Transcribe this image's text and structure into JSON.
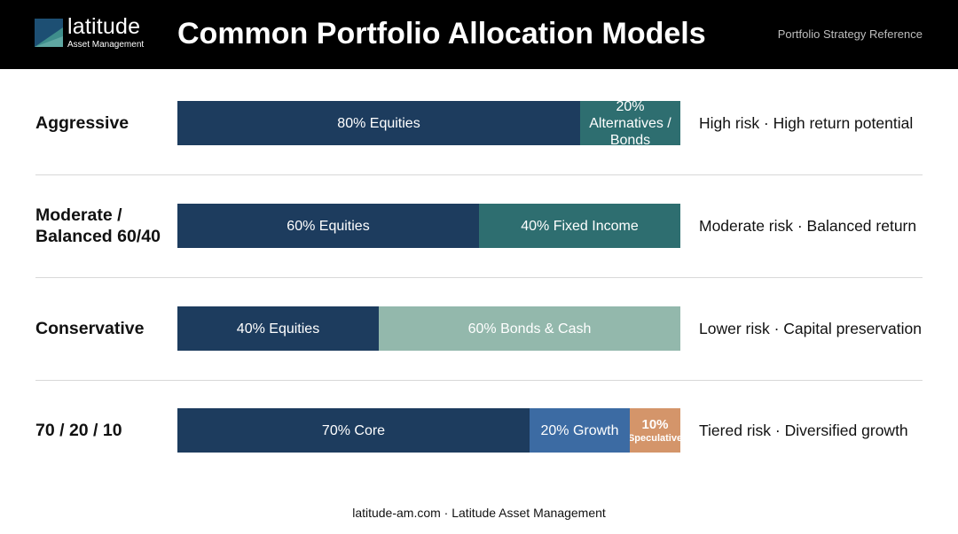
{
  "header": {
    "logo_word": "latitude",
    "logo_sub": "Asset Management",
    "title": "Common Portfolio Allocation Models",
    "subtitle": "Portfolio Strategy Reference"
  },
  "colors": {
    "header_bg": "#000000",
    "navy": "#1d3c5e",
    "teal": "#2e6e70",
    "sage": "#93b8ac",
    "blue": "#3c6ba3",
    "orange": "#d4956a"
  },
  "chart_data": {
    "type": "bar",
    "orientation": "horizontal-stacked-100",
    "title": "Common Portfolio Allocation Models",
    "categories": [
      "Aggressive",
      "Moderate / Balanced 60/40",
      "Conservative",
      "70 / 20 / 10"
    ],
    "rows": [
      {
        "label": "Aggressive",
        "description": "High risk · High return potential",
        "segments": [
          {
            "value": 80,
            "label": "80% Equities",
            "color": "#1d3c5e"
          },
          {
            "value": 20,
            "label": "20% Alternatives / Bonds",
            "color": "#2e6e70"
          }
        ]
      },
      {
        "label": "Moderate / Balanced 60/40",
        "label_lines": [
          "Moderate /",
          "Balanced 60/40"
        ],
        "description": "Moderate risk · Balanced return",
        "segments": [
          {
            "value": 60,
            "label": "60% Equities",
            "color": "#1d3c5e"
          },
          {
            "value": 40,
            "label": "40% Fixed Income",
            "color": "#2e6e70"
          }
        ]
      },
      {
        "label": "Conservative",
        "description": "Lower risk · Capital preservation",
        "segments": [
          {
            "value": 40,
            "label": "40% Equities",
            "color": "#1d3c5e"
          },
          {
            "value": 60,
            "label": "60% Bonds & Cash",
            "color": "#93b8ac"
          }
        ]
      },
      {
        "label": "70 / 20 / 10",
        "description": "Tiered risk · Diversified growth",
        "segments": [
          {
            "value": 70,
            "label": "70% Core",
            "color": "#1d3c5e"
          },
          {
            "value": 20,
            "label": "20% Growth",
            "color": "#3c6ba3"
          },
          {
            "value": 10,
            "label": "10%",
            "sublabel": "Speculative",
            "color": "#d4956a"
          }
        ]
      }
    ]
  },
  "footer": {
    "text": "latitude-am.com · Latitude Asset Management"
  }
}
